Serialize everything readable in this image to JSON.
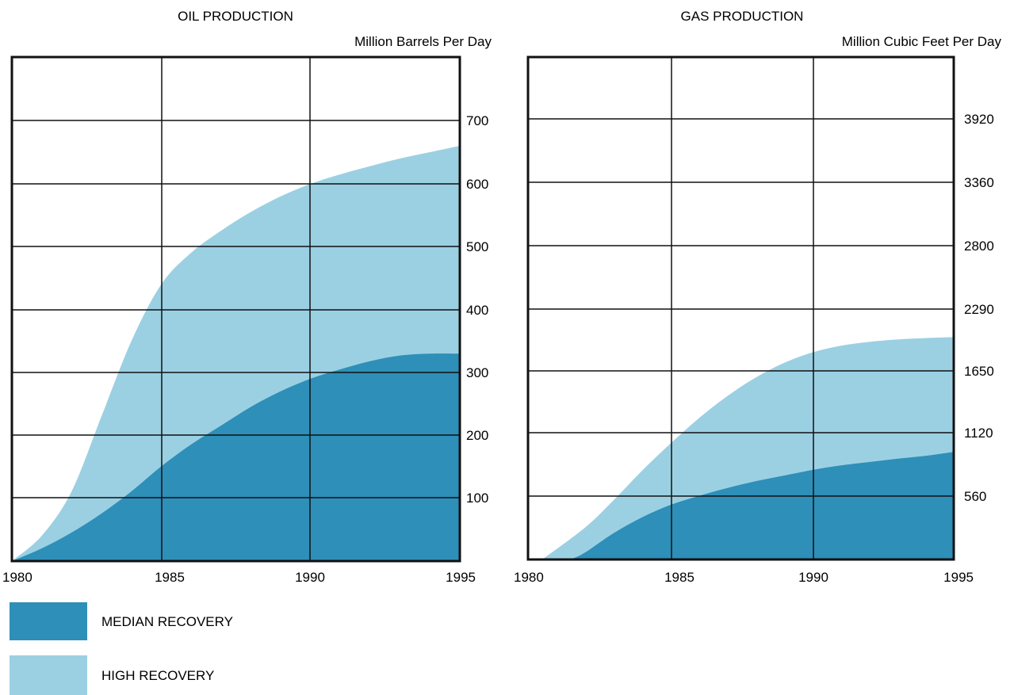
{
  "colors": {
    "median": "#2e8fb8",
    "high": "#9bd0e3",
    "grid": "#111111",
    "background": "#ffffff"
  },
  "legend": {
    "items": [
      {
        "label": "MEDIAN RECOVERY",
        "color": "#2e8fb8"
      },
      {
        "label": "HIGH RECOVERY",
        "color": "#9bd0e3"
      }
    ]
  },
  "chart_data": [
    {
      "type": "area",
      "title": "OIL PRODUCTION",
      "unit_label": "Million Barrels Per Day",
      "x_ticks": [
        "1980",
        "1985",
        "1990",
        "1995"
      ],
      "y_ticks": [
        "100",
        "200",
        "300",
        "400",
        "500",
        "600",
        "700"
      ],
      "xlim": [
        1980,
        1995
      ],
      "ylim": [
        0,
        800
      ],
      "grid": true,
      "series": [
        {
          "name": "HIGH RECOVERY",
          "key": "high",
          "x": [
            1980,
            1981,
            1982,
            1983,
            1984,
            1985,
            1986,
            1987,
            1988,
            1989,
            1990,
            1991,
            1992,
            1993,
            1994,
            1995
          ],
          "values": [
            0,
            40,
            110,
            230,
            350,
            440,
            490,
            525,
            555,
            580,
            600,
            615,
            628,
            640,
            650,
            660
          ]
        },
        {
          "name": "MEDIAN RECOVERY",
          "key": "median",
          "x": [
            1980,
            1981,
            1982,
            1983,
            1984,
            1985,
            1986,
            1987,
            1988,
            1989,
            1990,
            1991,
            1992,
            1993,
            1994,
            1995
          ],
          "values": [
            0,
            20,
            45,
            75,
            110,
            150,
            185,
            215,
            245,
            270,
            290,
            305,
            318,
            327,
            330,
            330
          ]
        }
      ]
    },
    {
      "type": "area",
      "title": "GAS PRODUCTION",
      "unit_label": "Million Cubic Feet Per Day",
      "x_ticks": [
        "1980",
        "1985",
        "1990",
        "1995"
      ],
      "y_ticks": [
        "560",
        "1120",
        "1650",
        "2290",
        "2800",
        "3360",
        "3920"
      ],
      "xlim": [
        1980,
        1995
      ],
      "ylim": [
        0,
        4480
      ],
      "grid": true,
      "series": [
        {
          "name": "HIGH RECOVERY",
          "key": "high",
          "x": [
            1980.5,
            1982,
            1983,
            1984,
            1985,
            1986,
            1987,
            1988,
            1989,
            1990,
            1991,
            1992,
            1993,
            1994,
            1995
          ],
          "values": [
            0,
            280,
            520,
            780,
            1020,
            1240,
            1430,
            1590,
            1730,
            1840,
            1910,
            1950,
            1975,
            1990,
            2000
          ]
        },
        {
          "name": "MEDIAN RECOVERY",
          "key": "median",
          "x": [
            1981.5,
            1982,
            1983,
            1984,
            1985,
            1986,
            1987,
            1988,
            1989,
            1990,
            1991,
            1992,
            1993,
            1994,
            1995
          ],
          "values": [
            0,
            60,
            230,
            370,
            480,
            560,
            630,
            690,
            740,
            790,
            830,
            860,
            890,
            915,
            950
          ]
        }
      ]
    }
  ]
}
